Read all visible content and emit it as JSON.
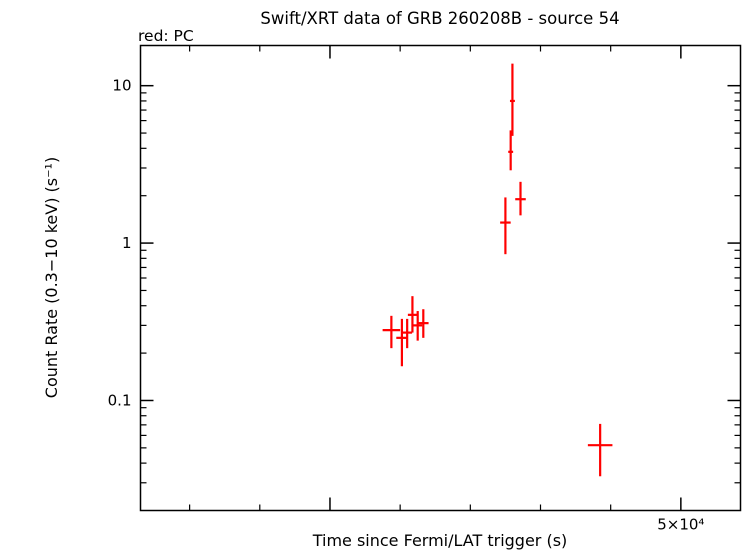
{
  "title": "Swift/XRT data of GRB 260208B - source 54",
  "legend": "red: PC",
  "xlabel": "Time since Fermi/LAT trigger (s)",
  "ylabel": "Count Rate (0.3−10 keV) (s⁻¹)",
  "colors": {
    "data_series": "#ff0000",
    "axis": "#000000",
    "background": "#ffffff"
  },
  "chart_data": {
    "type": "scatter",
    "mode": "xy-error-bars",
    "series_name": "PC",
    "x_scale": "linear",
    "y_scale": "log",
    "xlim": [
      34600,
      51700
    ],
    "ylim": [
      0.02,
      18
    ],
    "grid": false,
    "x_major_ticks": [
      40000,
      50000
    ],
    "x_minor_ticks": [
      36000,
      38000,
      42000,
      44000,
      46000,
      48000
    ],
    "x_tick_labels": [
      {
        "value": 50000,
        "label": "5×10⁴"
      }
    ],
    "y_major_ticks": [
      0.1,
      1,
      10
    ],
    "y_minor_per_decade": [
      2,
      3,
      4,
      5,
      6,
      7,
      8,
      9
    ],
    "y_tick_labels": [
      {
        "value": 10,
        "label": "10"
      },
      {
        "value": 1,
        "label": "1"
      },
      {
        "value": 0.1,
        "label": "0.1"
      }
    ],
    "points": [
      {
        "x": 41750,
        "xerr": 250,
        "y": 0.28,
        "ylo": 0.215,
        "yhi": 0.345
      },
      {
        "x": 42050,
        "xerr": 160,
        "y": 0.25,
        "ylo": 0.165,
        "yhi": 0.33
      },
      {
        "x": 42200,
        "xerr": 140,
        "y": 0.27,
        "ylo": 0.215,
        "yhi": 0.33
      },
      {
        "x": 42350,
        "xerr": 130,
        "y": 0.35,
        "ylo": 0.27,
        "yhi": 0.46
      },
      {
        "x": 42500,
        "xerr": 130,
        "y": 0.3,
        "ylo": 0.24,
        "yhi": 0.37
      },
      {
        "x": 42660,
        "xerr": 150,
        "y": 0.31,
        "ylo": 0.25,
        "yhi": 0.38
      },
      {
        "x": 45000,
        "xerr": 150,
        "y": 1.35,
        "ylo": 0.85,
        "yhi": 1.95
      },
      {
        "x": 45150,
        "xerr": 70,
        "y": 3.8,
        "ylo": 2.9,
        "yhi": 5.2
      },
      {
        "x": 45200,
        "xerr": 70,
        "y": 8.0,
        "ylo": 4.8,
        "yhi": 13.8
      },
      {
        "x": 45430,
        "xerr": 150,
        "y": 1.9,
        "ylo": 1.5,
        "yhi": 2.45
      },
      {
        "x": 47700,
        "xerr": 350,
        "y": 0.052,
        "ylo": 0.033,
        "yhi": 0.071
      }
    ]
  }
}
